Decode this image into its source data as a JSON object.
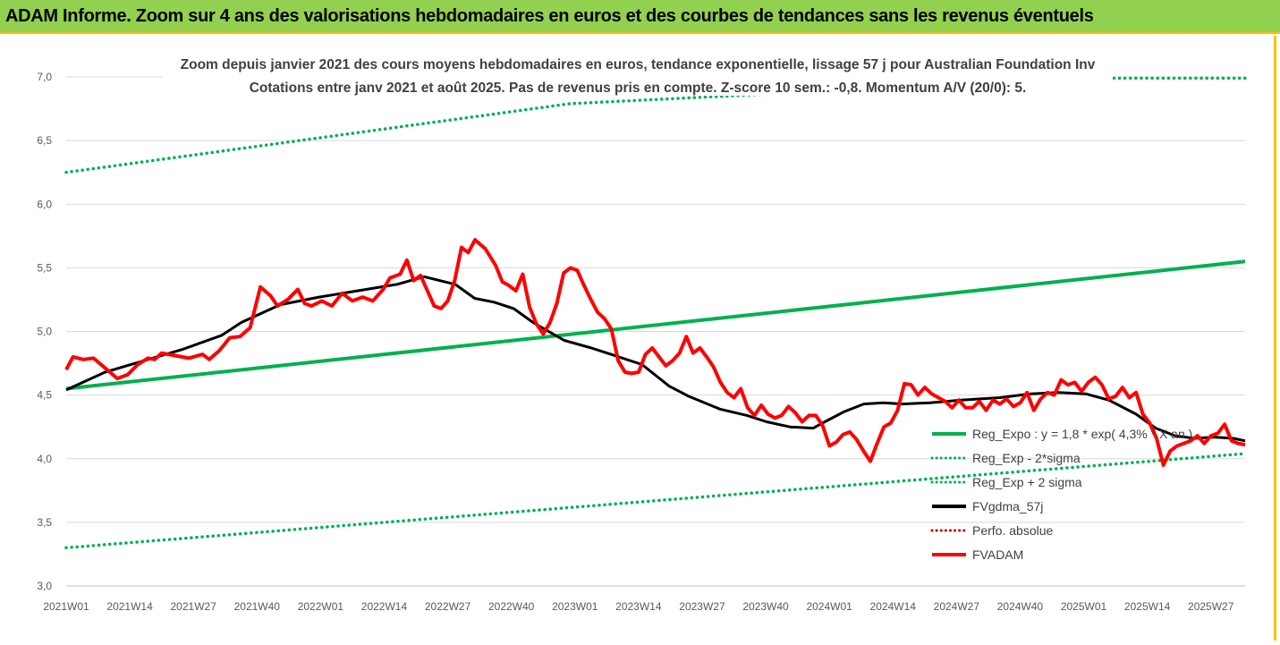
{
  "banner": {
    "title": "ADAM Informe. Zoom sur 4 ans des valorisations hebdomadaires en euros et des courbes de tendances sans les revenus éventuels"
  },
  "colors": {
    "banner_bg": "#92d050",
    "banner_border": "#ffc000",
    "reg_expo": "#00b050",
    "reg_band": "#00b050",
    "fvgdma": "#000000",
    "perfo": "#c00000",
    "fvadam": "#ff0000"
  },
  "chart_data": {
    "type": "line",
    "title": "Zoom depuis janvier 2021 des cours moyens hebdomadaires en euros, tendance exponentielle, lissage 57 j pour Australian Foundation Inv",
    "subtitle": "Cotations entre janv 2021 et août 2025.  Pas de revenus pris en compte. Z-score 10 sem.: -0,8. Momentum A/V (20/0): 5.",
    "xlabel": "",
    "ylabel": "",
    "ylim": [
      3.0,
      7.0
    ],
    "yticks": [
      "3,0",
      "3,5",
      "4,0",
      "4,5",
      "5,0",
      "5,5",
      "6,0",
      "6,5",
      "7,0"
    ],
    "x_tick_labels": [
      "2021W01",
      "2021W14",
      "2021W27",
      "2021W40",
      "2022W01",
      "2022W14",
      "2022W27",
      "2022W40",
      "2023W01",
      "2023W14",
      "2023W27",
      "2023W40",
      "2024W01",
      "2024W14",
      "2024W27",
      "2024W40",
      "2025W01",
      "2025W14",
      "2025W27"
    ],
    "x_start_label": "2021W01",
    "n_weeks": 242,
    "grid": "horizontal",
    "legend_position": "right",
    "series": [
      {
        "name": "Reg_Expo : y = 1,8 * exp( 4,3% *  X  an )",
        "style": "solid",
        "color": "#00b050",
        "points": [
          [
            0,
            4.55
          ],
          [
            241,
            5.55
          ]
        ]
      },
      {
        "name": "Reg_Exp - 2*sigma",
        "style": "dotted",
        "color": "#00b050",
        "points": [
          [
            0,
            3.3
          ],
          [
            241,
            4.04
          ]
        ]
      },
      {
        "name": "Reg_Exp + 2 sigma",
        "style": "dotted",
        "color": "#00b050",
        "points": [
          [
            0,
            6.25
          ],
          [
            103,
            6.79
          ],
          [
            210,
            6.99
          ],
          [
            241,
            6.99
          ]
        ]
      },
      {
        "name": "FVgdma_57j",
        "style": "solid",
        "color": "#000000",
        "points": [
          [
            0,
            4.54
          ],
          [
            10,
            4.68
          ],
          [
            20,
            4.77
          ],
          [
            30,
            4.86
          ],
          [
            40,
            4.97
          ],
          [
            45,
            5.07
          ],
          [
            55,
            5.21
          ],
          [
            65,
            5.27
          ],
          [
            75,
            5.32
          ],
          [
            85,
            5.37
          ],
          [
            92,
            5.43
          ],
          [
            100,
            5.37
          ],
          [
            105,
            5.26
          ],
          [
            110,
            5.23
          ],
          [
            115,
            5.18
          ],
          [
            120,
            5.07
          ],
          [
            128,
            4.93
          ],
          [
            135,
            4.87
          ],
          [
            140,
            4.82
          ],
          [
            148,
            4.74
          ],
          [
            155,
            4.57
          ],
          [
            160,
            4.49
          ],
          [
            168,
            4.39
          ],
          [
            175,
            4.34
          ],
          [
            180,
            4.29
          ],
          [
            186,
            4.25
          ],
          [
            192,
            4.24
          ],
          [
            195,
            4.29
          ],
          [
            200,
            4.37
          ],
          [
            205,
            4.43
          ],
          [
            210,
            4.44
          ],
          [
            215,
            4.43
          ],
          [
            222,
            4.44
          ],
          [
            230,
            4.46
          ],
          [
            240,
            4.48
          ],
          [
            248,
            4.51
          ],
          [
            255,
            4.52
          ],
          [
            262,
            4.51
          ],
          [
            268,
            4.46
          ],
          [
            275,
            4.35
          ],
          [
            280,
            4.24
          ],
          [
            285,
            4.18
          ],
          [
            290,
            4.16
          ],
          [
            295,
            4.17
          ],
          [
            300,
            4.16
          ],
          [
            303,
            4.14
          ]
        ]
      },
      {
        "name": "Perfo. absolue",
        "style": "dotted",
        "color": "#c00000",
        "points": []
      },
      {
        "name": "FVADAM",
        "style": "solid",
        "color": "#ff0000",
        "points": [
          [
            0,
            4.7
          ],
          [
            2,
            4.8
          ],
          [
            5,
            4.78
          ],
          [
            8,
            4.79
          ],
          [
            12,
            4.7
          ],
          [
            15,
            4.63
          ],
          [
            18,
            4.66
          ],
          [
            21,
            4.74
          ],
          [
            24,
            4.79
          ],
          [
            26,
            4.78
          ],
          [
            28,
            4.83
          ],
          [
            32,
            4.81
          ],
          [
            36,
            4.79
          ],
          [
            40,
            4.82
          ],
          [
            42,
            4.78
          ],
          [
            45,
            4.85
          ],
          [
            48,
            4.95
          ],
          [
            51,
            4.96
          ],
          [
            54,
            5.03
          ],
          [
            57,
            5.35
          ],
          [
            60,
            5.28
          ],
          [
            62,
            5.2
          ],
          [
            65,
            5.25
          ],
          [
            68,
            5.33
          ],
          [
            70,
            5.22
          ],
          [
            72,
            5.2
          ],
          [
            75,
            5.24
          ],
          [
            78,
            5.2
          ],
          [
            81,
            5.3
          ],
          [
            84,
            5.24
          ],
          [
            87,
            5.27
          ],
          [
            90,
            5.24
          ],
          [
            93,
            5.33
          ],
          [
            95,
            5.42
          ],
          [
            98,
            5.45
          ],
          [
            100,
            5.56
          ],
          [
            102,
            5.4
          ],
          [
            104,
            5.44
          ],
          [
            106,
            5.32
          ],
          [
            108,
            5.2
          ],
          [
            110,
            5.18
          ],
          [
            112,
            5.24
          ],
          [
            114,
            5.4
          ],
          [
            116,
            5.66
          ],
          [
            118,
            5.62
          ],
          [
            120,
            5.72
          ],
          [
            123,
            5.65
          ],
          [
            126,
            5.52
          ],
          [
            128,
            5.39
          ],
          [
            130,
            5.36
          ],
          [
            132,
            5.32
          ],
          [
            134,
            5.45
          ],
          [
            136,
            5.19
          ],
          [
            138,
            5.06
          ],
          [
            140,
            4.98
          ],
          [
            142,
            5.07
          ],
          [
            144,
            5.22
          ],
          [
            146,
            5.46
          ],
          [
            148,
            5.5
          ],
          [
            150,
            5.48
          ],
          [
            152,
            5.36
          ],
          [
            154,
            5.25
          ],
          [
            156,
            5.15
          ],
          [
            158,
            5.1
          ],
          [
            160,
            5.02
          ],
          [
            162,
            4.77
          ],
          [
            164,
            4.68
          ],
          [
            166,
            4.67
          ],
          [
            168,
            4.68
          ],
          [
            170,
            4.82
          ],
          [
            172,
            4.87
          ],
          [
            174,
            4.8
          ],
          [
            176,
            4.73
          ],
          [
            178,
            4.77
          ],
          [
            180,
            4.83
          ],
          [
            182,
            4.96
          ],
          [
            184,
            4.83
          ],
          [
            186,
            4.87
          ],
          [
            188,
            4.8
          ],
          [
            190,
            4.72
          ],
          [
            192,
            4.6
          ],
          [
            194,
            4.52
          ],
          [
            196,
            4.48
          ],
          [
            198,
            4.55
          ],
          [
            200,
            4.4
          ],
          [
            202,
            4.34
          ],
          [
            204,
            4.42
          ],
          [
            206,
            4.35
          ],
          [
            208,
            4.32
          ],
          [
            210,
            4.34
          ],
          [
            212,
            4.41
          ],
          [
            214,
            4.36
          ],
          [
            216,
            4.29
          ],
          [
            218,
            4.34
          ],
          [
            220,
            4.34
          ],
          [
            222,
            4.26
          ],
          [
            224,
            4.1
          ],
          [
            226,
            4.13
          ],
          [
            228,
            4.19
          ],
          [
            230,
            4.21
          ],
          [
            232,
            4.15
          ],
          [
            234,
            4.06
          ],
          [
            236,
            3.98
          ],
          [
            238,
            4.12
          ],
          [
            240,
            4.25
          ],
          [
            242,
            4.28
          ],
          [
            244,
            4.38
          ],
          [
            246,
            4.59
          ],
          [
            248,
            4.58
          ],
          [
            250,
            4.5
          ],
          [
            252,
            4.56
          ],
          [
            254,
            4.51
          ],
          [
            256,
            4.48
          ],
          [
            258,
            4.45
          ],
          [
            260,
            4.4
          ],
          [
            262,
            4.46
          ],
          [
            264,
            4.4
          ],
          [
            266,
            4.4
          ],
          [
            268,
            4.45
          ],
          [
            270,
            4.38
          ],
          [
            272,
            4.46
          ],
          [
            274,
            4.43
          ],
          [
            276,
            4.47
          ],
          [
            278,
            4.41
          ],
          [
            280,
            4.44
          ],
          [
            282,
            4.52
          ],
          [
            284,
            4.38
          ],
          [
            286,
            4.47
          ],
          [
            288,
            4.52
          ],
          [
            290,
            4.5
          ],
          [
            292,
            4.62
          ],
          [
            294,
            4.58
          ],
          [
            296,
            4.6
          ],
          [
            298,
            4.53
          ],
          [
            300,
            4.6
          ],
          [
            302,
            4.64
          ],
          [
            304,
            4.58
          ],
          [
            306,
            4.47
          ],
          [
            308,
            4.49
          ],
          [
            310,
            4.56
          ],
          [
            312,
            4.48
          ],
          [
            314,
            4.52
          ],
          [
            316,
            4.35
          ],
          [
            318,
            4.28
          ],
          [
            320,
            4.16
          ],
          [
            322,
            3.95
          ],
          [
            324,
            4.06
          ],
          [
            326,
            4.1
          ],
          [
            328,
            4.12
          ],
          [
            330,
            4.14
          ],
          [
            332,
            4.18
          ],
          [
            334,
            4.12
          ],
          [
            336,
            4.18
          ],
          [
            338,
            4.2
          ],
          [
            340,
            4.27
          ],
          [
            342,
            4.14
          ],
          [
            344,
            4.12
          ],
          [
            346,
            4.11
          ]
        ]
      }
    ]
  }
}
